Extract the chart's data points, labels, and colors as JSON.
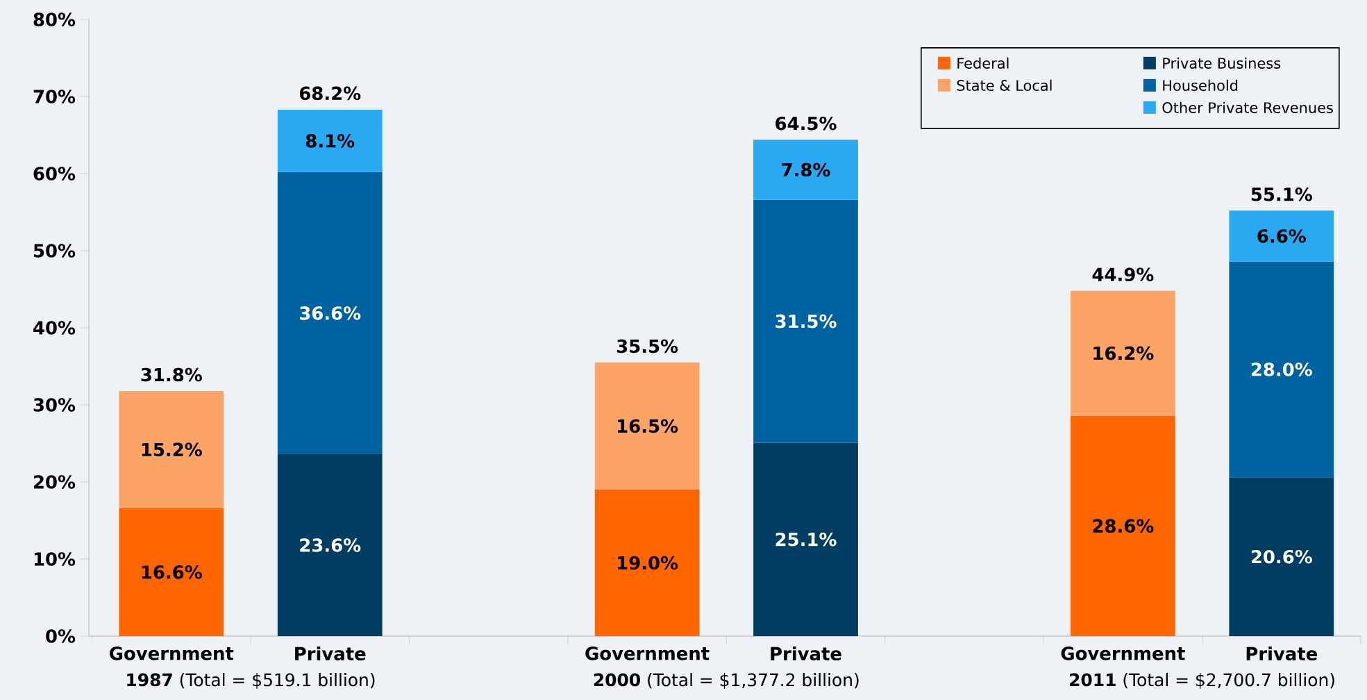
{
  "chart_data": {
    "type": "bar",
    "stacked": true,
    "categories": [
      "Government",
      "Private",
      null,
      "Government",
      "Private",
      null,
      "Government",
      "Private"
    ],
    "series": [
      {
        "name": "Federal",
        "color": "#ff6600",
        "values": [
          16.6,
          null,
          null,
          19.0,
          null,
          null,
          28.6,
          null
        ],
        "value_labels": [
          "16.6%",
          null,
          null,
          "19.0%",
          null,
          null,
          "28.6%",
          null
        ]
      },
      {
        "name": "State & Local",
        "color": "#fba466",
        "values": [
          15.2,
          null,
          null,
          16.5,
          null,
          null,
          16.2,
          null
        ],
        "value_labels": [
          "15.2%",
          null,
          null,
          "16.5%",
          null,
          null,
          "16.2%",
          null
        ]
      },
      {
        "name": "Private Business",
        "color": "#003d62",
        "values": [
          null,
          23.6,
          null,
          null,
          25.1,
          null,
          null,
          20.6
        ],
        "value_labels": [
          null,
          "23.6%",
          null,
          null,
          "25.1%",
          null,
          null,
          "20.6%"
        ]
      },
      {
        "name": "Household",
        "color": "#0062a0",
        "values": [
          null,
          36.6,
          null,
          null,
          31.5,
          null,
          null,
          28.0
        ],
        "value_labels": [
          null,
          "36.6%",
          null,
          null,
          "31.5%",
          null,
          null,
          "28.0%"
        ]
      },
      {
        "name": "Other Private Revenues",
        "color": "#2aa9f2",
        "values": [
          null,
          8.1,
          null,
          null,
          7.8,
          null,
          null,
          6.6
        ],
        "value_labels": [
          null,
          "8.1%",
          null,
          null,
          "7.8%",
          null,
          null,
          "6.6%"
        ]
      }
    ],
    "totals": [
      "31.8%",
      "68.2%",
      null,
      "35.5%",
      "64.5%",
      null,
      "44.9%",
      "55.1%"
    ],
    "ylim": [
      0,
      80
    ],
    "yticks": [
      {
        "value": 0,
        "label": "0%"
      },
      {
        "value": 10,
        "label": "10%"
      },
      {
        "value": 20,
        "label": "20%"
      },
      {
        "value": 30,
        "label": "30%"
      },
      {
        "value": 40,
        "label": "40%"
      },
      {
        "value": 50,
        "label": "50%"
      },
      {
        "value": 60,
        "label": "60%"
      },
      {
        "value": 70,
        "label": "70%"
      },
      {
        "value": 80,
        "label": "80%"
      }
    ],
    "annotations": [
      "**1987** (Total = $519.1 billion)",
      "**2000** (Total = $1,377.2 billion)",
      "**2011** (Total = $2,700.7 billion)"
    ],
    "legend": "top right",
    "grid": false
  }
}
